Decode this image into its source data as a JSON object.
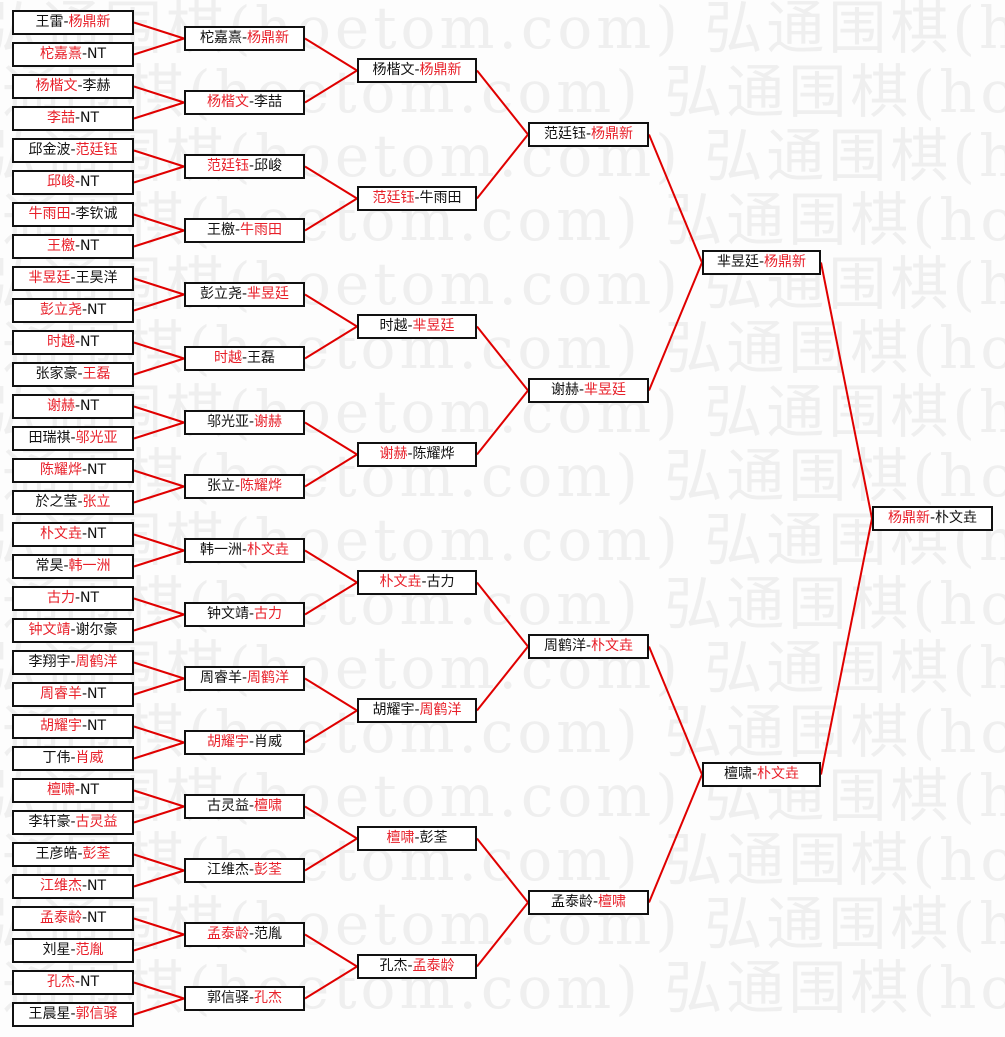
{
  "watermark": "弘通围棋(hoetom.com)",
  "colors": {
    "line": "#e00000",
    "winner": "#e8202a",
    "text": "#111111",
    "border": "#111111"
  },
  "separator": "-",
  "rounds": [
    [
      {
        "a": "王雷",
        "b": "杨鼎新",
        "red": "b"
      },
      {
        "a": "柁嘉熹",
        "b": "NT",
        "red": "a"
      },
      {
        "a": "杨楷文",
        "b": "李赫",
        "red": "a"
      },
      {
        "a": "李喆",
        "b": "NT",
        "red": "a"
      },
      {
        "a": "邱金波",
        "b": "范廷钰",
        "red": "b"
      },
      {
        "a": "邱峻",
        "b": "NT",
        "red": "a"
      },
      {
        "a": "牛雨田",
        "b": "李钦诚",
        "red": "a"
      },
      {
        "a": "王檄",
        "b": "NT",
        "red": "a"
      },
      {
        "a": "芈昱廷",
        "b": "王昊洋",
        "red": "a"
      },
      {
        "a": "彭立尧",
        "b": "NT",
        "red": "a"
      },
      {
        "a": "时越",
        "b": "NT",
        "red": "a"
      },
      {
        "a": "张家豪",
        "b": "王磊",
        "red": "b"
      },
      {
        "a": "谢赫",
        "b": "NT",
        "red": "a"
      },
      {
        "a": "田瑞祺",
        "b": "邬光亚",
        "red": "b"
      },
      {
        "a": "陈耀烨",
        "b": "NT",
        "red": "a"
      },
      {
        "a": "於之莹",
        "b": "张立",
        "red": "b"
      },
      {
        "a": "朴文垚",
        "b": "NT",
        "red": "a"
      },
      {
        "a": "常昊",
        "b": "韩一洲",
        "red": "b"
      },
      {
        "a": "古力",
        "b": "NT",
        "red": "a"
      },
      {
        "a": "钟文靖",
        "b": "谢尔豪",
        "red": "a"
      },
      {
        "a": "李翔宇",
        "b": "周鹤洋",
        "red": "b"
      },
      {
        "a": "周睿羊",
        "b": "NT",
        "red": "a"
      },
      {
        "a": "胡耀宇",
        "b": "NT",
        "red": "a"
      },
      {
        "a": "丁伟",
        "b": "肖威",
        "red": "b"
      },
      {
        "a": "檀啸",
        "b": "NT",
        "red": "a"
      },
      {
        "a": "李轩豪",
        "b": "古灵益",
        "red": "b"
      },
      {
        "a": "王彦皓",
        "b": "彭荃",
        "red": "b"
      },
      {
        "a": "江维杰",
        "b": "NT",
        "red": "a"
      },
      {
        "a": "孟泰龄",
        "b": "NT",
        "red": "a"
      },
      {
        "a": "刘星",
        "b": "范胤",
        "red": "b"
      },
      {
        "a": "孔杰",
        "b": "NT",
        "red": "a"
      },
      {
        "a": "王晨星",
        "b": "郭信驿",
        "red": "b"
      }
    ],
    [
      {
        "a": "柁嘉熹",
        "b": "杨鼎新",
        "red": "b"
      },
      {
        "a": "杨楷文",
        "b": "李喆",
        "red": "a"
      },
      {
        "a": "范廷钰",
        "b": "邱峻",
        "red": "a"
      },
      {
        "a": "王檄",
        "b": "牛雨田",
        "red": "b"
      },
      {
        "a": "彭立尧",
        "b": "芈昱廷",
        "red": "b"
      },
      {
        "a": "时越",
        "b": "王磊",
        "red": "a"
      },
      {
        "a": "邬光亚",
        "b": "谢赫",
        "red": "b"
      },
      {
        "a": "张立",
        "b": "陈耀烨",
        "red": "b"
      },
      {
        "a": "韩一洲",
        "b": "朴文垚",
        "red": "b"
      },
      {
        "a": "钟文靖",
        "b": "古力",
        "red": "b"
      },
      {
        "a": "周睿羊",
        "b": "周鹤洋",
        "red": "b"
      },
      {
        "a": "胡耀宇",
        "b": "肖威",
        "red": "a"
      },
      {
        "a": "古灵益",
        "b": "檀啸",
        "red": "b"
      },
      {
        "a": "江维杰",
        "b": "彭荃",
        "red": "b"
      },
      {
        "a": "孟泰龄",
        "b": "范胤",
        "red": "a"
      },
      {
        "a": "郭信驿",
        "b": "孔杰",
        "red": "b"
      }
    ],
    [
      {
        "a": "杨楷文",
        "b": "杨鼎新",
        "red": "b"
      },
      {
        "a": "范廷钰",
        "b": "牛雨田",
        "red": "a"
      },
      {
        "a": "时越",
        "b": "芈昱廷",
        "red": "b"
      },
      {
        "a": "谢赫",
        "b": "陈耀烨",
        "red": "a"
      },
      {
        "a": "朴文垚",
        "b": "古力",
        "red": "a"
      },
      {
        "a": "胡耀宇",
        "b": "周鹤洋",
        "red": "b"
      },
      {
        "a": "檀啸",
        "b": "彭荃",
        "red": "a"
      },
      {
        "a": "孔杰",
        "b": "孟泰龄",
        "red": "b"
      }
    ],
    [
      {
        "a": "范廷钰",
        "b": "杨鼎新",
        "red": "b"
      },
      {
        "a": "谢赫",
        "b": "芈昱廷",
        "red": "b"
      },
      {
        "a": "周鹤洋",
        "b": "朴文垚",
        "red": "b"
      },
      {
        "a": "孟泰龄",
        "b": "檀啸",
        "red": "b"
      }
    ],
    [
      {
        "a": "芈昱廷",
        "b": "杨鼎新",
        "red": "b"
      },
      {
        "a": "檀啸",
        "b": "朴文垚",
        "red": "b"
      }
    ],
    [
      {
        "a": "杨鼎新",
        "b": "朴文垚",
        "red": "a"
      }
    ]
  ]
}
